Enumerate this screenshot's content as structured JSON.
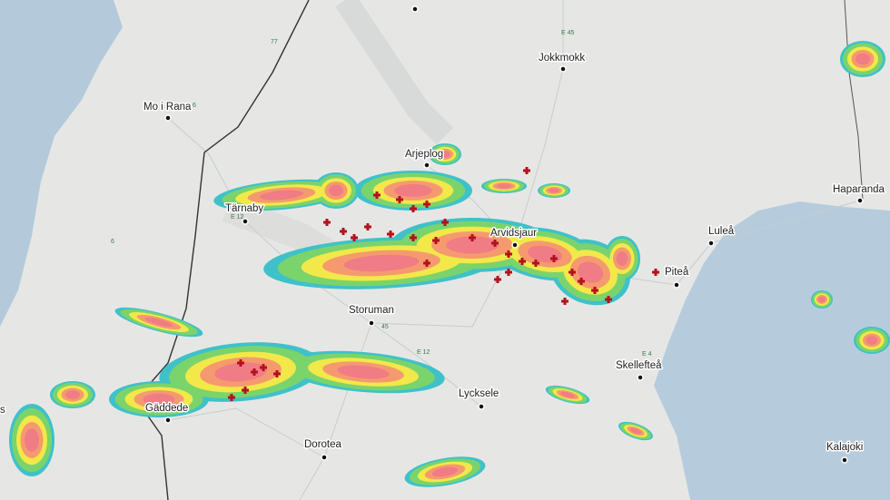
{
  "places": [
    "Mo i Rana",
    "Jokkmokk",
    "Arjeplog",
    "Tärnaby",
    "Arvidsjaur",
    "Luleå",
    "Haparanda",
    "Piteå",
    "Storuman",
    "Skellefteå",
    "Lycksele",
    "Gäddede",
    "Dorotea",
    "Kalajoki",
    "s"
  ],
  "roads": [
    "E 45",
    "77",
    "E 12",
    "E 4",
    "45",
    "6",
    "E 12",
    "6"
  ]
}
